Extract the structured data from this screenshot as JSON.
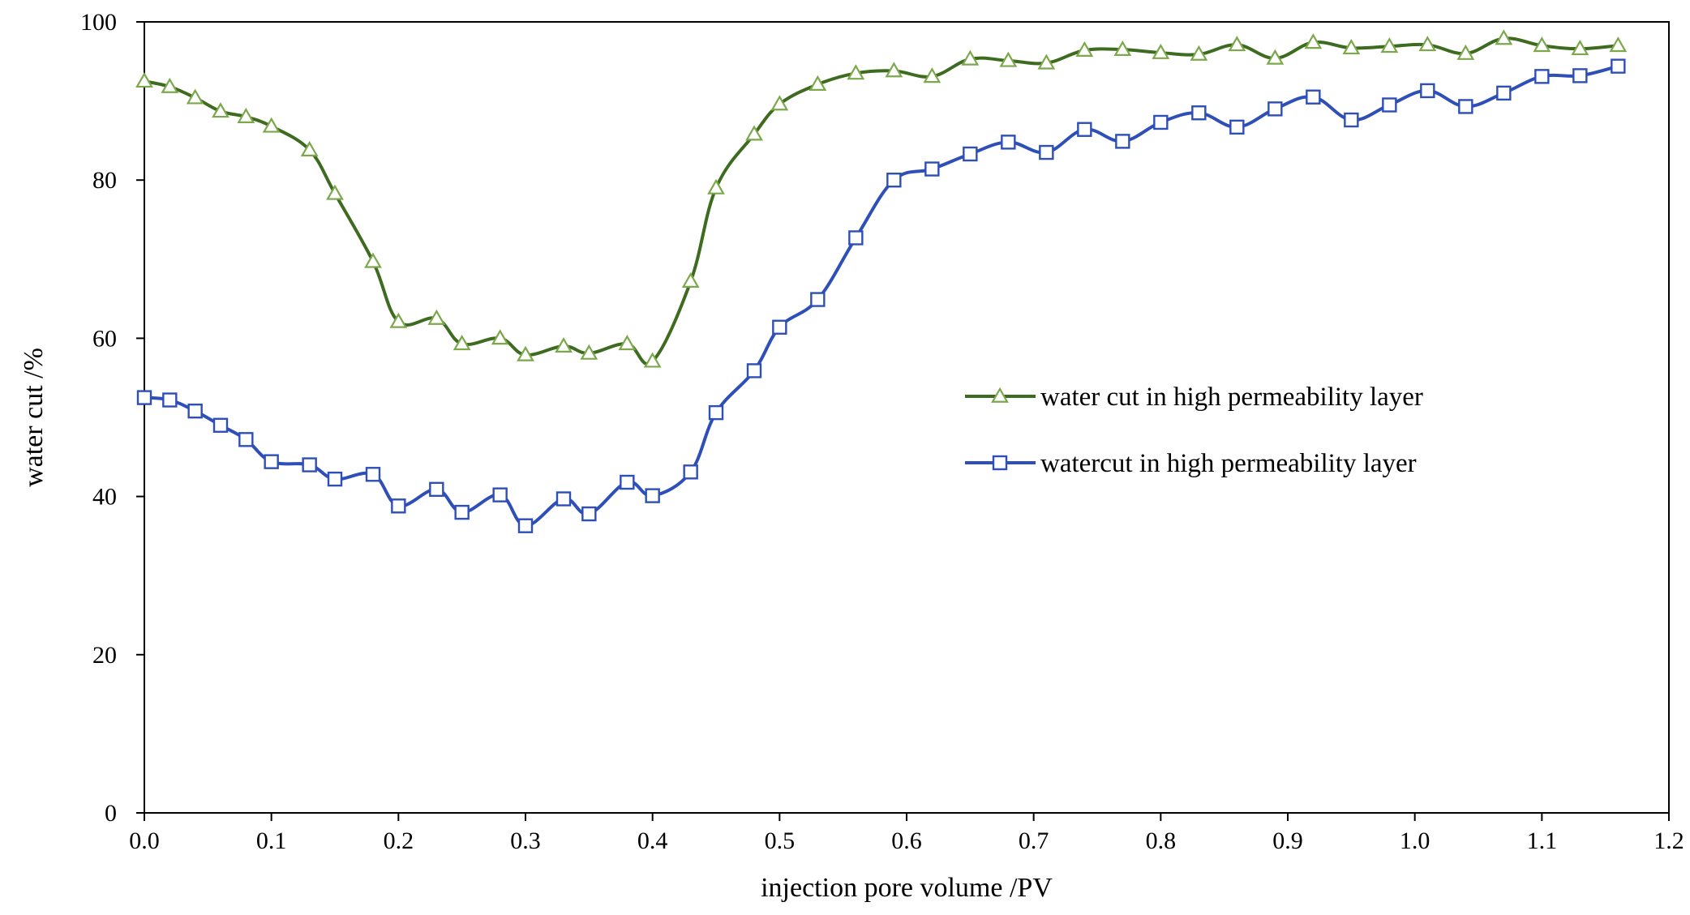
{
  "chart_data": {
    "type": "line",
    "title": "",
    "xlabel": "injection pore volume /PV",
    "ylabel": "water cut /%",
    "xlim": [
      0.0,
      1.2
    ],
    "ylim": [
      0,
      100
    ],
    "x_ticks": [
      "0.0",
      "0.1",
      "0.2",
      "0.3",
      "0.4",
      "0.5",
      "0.6",
      "0.7",
      "0.8",
      "0.9",
      "1.0",
      "1.1",
      "1.2"
    ],
    "y_ticks": [
      "0",
      "20",
      "40",
      "60",
      "80",
      "100"
    ],
    "grid": false,
    "legend_position": "center-right",
    "series": [
      {
        "name": "water cut in high permeability layer",
        "color": "#3d6b1f",
        "marker": "triangle",
        "marker_color": "#7aa84a",
        "points": [
          [
            0.0,
            92.5
          ],
          [
            0.02,
            91.8
          ],
          [
            0.04,
            90.4
          ],
          [
            0.06,
            88.7
          ],
          [
            0.08,
            88.0
          ],
          [
            0.1,
            86.8
          ],
          [
            0.13,
            83.8
          ],
          [
            0.15,
            78.3
          ],
          [
            0.18,
            69.7
          ],
          [
            0.2,
            62.1
          ],
          [
            0.23,
            62.5
          ],
          [
            0.25,
            59.3
          ],
          [
            0.28,
            60.0
          ],
          [
            0.3,
            57.9
          ],
          [
            0.33,
            59.0
          ],
          [
            0.35,
            58.1
          ],
          [
            0.38,
            59.3
          ],
          [
            0.4,
            57.1
          ],
          [
            0.43,
            67.2
          ],
          [
            0.45,
            79.0
          ],
          [
            0.48,
            85.8
          ],
          [
            0.5,
            89.6
          ],
          [
            0.53,
            92.1
          ],
          [
            0.56,
            93.5
          ],
          [
            0.59,
            93.8
          ],
          [
            0.62,
            93.1
          ],
          [
            0.65,
            95.3
          ],
          [
            0.68,
            95.1
          ],
          [
            0.71,
            94.8
          ],
          [
            0.74,
            96.4
          ],
          [
            0.77,
            96.5
          ],
          [
            0.8,
            96.1
          ],
          [
            0.83,
            95.9
          ],
          [
            0.86,
            97.1
          ],
          [
            0.89,
            95.4
          ],
          [
            0.92,
            97.4
          ],
          [
            0.95,
            96.7
          ],
          [
            0.98,
            96.9
          ],
          [
            1.01,
            97.1
          ],
          [
            1.04,
            96.0
          ],
          [
            1.07,
            97.9
          ],
          [
            1.1,
            97.0
          ],
          [
            1.13,
            96.6
          ],
          [
            1.16,
            97.0
          ]
        ]
      },
      {
        "name": "watercut in high permeability layer",
        "color": "#2e4fb8",
        "marker": "square",
        "marker_color": "#2e4fb8",
        "points": [
          [
            0.0,
            52.5
          ],
          [
            0.02,
            52.2
          ],
          [
            0.04,
            50.8
          ],
          [
            0.06,
            49.0
          ],
          [
            0.08,
            47.2
          ],
          [
            0.1,
            44.4
          ],
          [
            0.13,
            44.0
          ],
          [
            0.15,
            42.2
          ],
          [
            0.18,
            42.8
          ],
          [
            0.2,
            38.8
          ],
          [
            0.23,
            40.9
          ],
          [
            0.25,
            38.0
          ],
          [
            0.28,
            40.2
          ],
          [
            0.3,
            36.3
          ],
          [
            0.33,
            39.7
          ],
          [
            0.35,
            37.8
          ],
          [
            0.38,
            41.8
          ],
          [
            0.4,
            40.1
          ],
          [
            0.43,
            43.1
          ],
          [
            0.45,
            50.6
          ],
          [
            0.48,
            55.9
          ],
          [
            0.5,
            61.4
          ],
          [
            0.53,
            64.9
          ],
          [
            0.56,
            72.7
          ],
          [
            0.59,
            80.0
          ],
          [
            0.62,
            81.4
          ],
          [
            0.65,
            83.3
          ],
          [
            0.68,
            84.8
          ],
          [
            0.71,
            83.5
          ],
          [
            0.74,
            86.4
          ],
          [
            0.77,
            84.9
          ],
          [
            0.8,
            87.3
          ],
          [
            0.83,
            88.5
          ],
          [
            0.86,
            86.7
          ],
          [
            0.89,
            89.0
          ],
          [
            0.92,
            90.5
          ],
          [
            0.95,
            87.6
          ],
          [
            0.98,
            89.5
          ],
          [
            1.01,
            91.3
          ],
          [
            1.04,
            89.3
          ],
          [
            1.07,
            91.0
          ],
          [
            1.1,
            93.1
          ],
          [
            1.13,
            93.2
          ],
          [
            1.16,
            94.4
          ]
        ]
      }
    ]
  }
}
